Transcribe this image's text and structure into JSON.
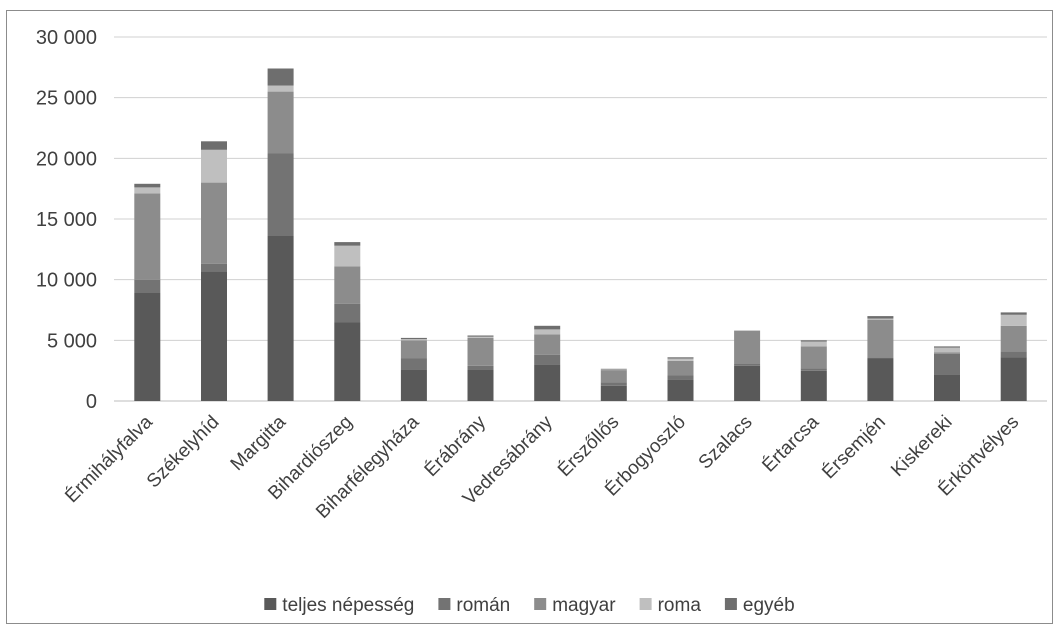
{
  "chart_data": {
    "type": "bar",
    "stacked": true,
    "categories": [
      "Érmihályfalva",
      "Székelyhíd",
      "Margitta",
      "Bihardiószeg",
      "Biharfélegyháza",
      "Érábrány",
      "Vedresábrány",
      "Érszőllős",
      "Érbogyoszló",
      "Szalacs",
      "Értarcsa",
      "Érsemjén",
      "Kiskereki",
      "Érkörtvélyes"
    ],
    "series": [
      {
        "name": "teljes népesség",
        "color": "#595959",
        "values": [
          8900,
          10700,
          13600,
          6500,
          2600,
          2600,
          3000,
          1250,
          1800,
          2900,
          2500,
          3500,
          2200,
          3600
        ]
      },
      {
        "name": "román",
        "color": "#737373",
        "values": [
          1100,
          600,
          6800,
          1500,
          900,
          300,
          800,
          300,
          300,
          150,
          200,
          100,
          1700,
          500
        ]
      },
      {
        "name": "magyar",
        "color": "#8c8c8c",
        "values": [
          7100,
          6700,
          5100,
          3100,
          1500,
          2300,
          1700,
          1000,
          1200,
          2750,
          1800,
          3100,
          100,
          2100
        ]
      },
      {
        "name": "roma",
        "color": "#bfbfbf",
        "values": [
          500,
          2700,
          500,
          1700,
          100,
          100,
          400,
          50,
          200,
          0,
          400,
          100,
          400,
          900
        ]
      },
      {
        "name": "egyéb",
        "color": "#6e6e6e",
        "values": [
          300,
          700,
          1400,
          300,
          100,
          100,
          300,
          50,
          100,
          0,
          100,
          200,
          100,
          200
        ]
      }
    ],
    "yticks": [
      "0",
      "5 000",
      "10 000",
      "15 000",
      "20 000",
      "25 000",
      "30 000"
    ],
    "ylim": [
      0,
      30000
    ],
    "grid": true,
    "legend": "bottom"
  }
}
